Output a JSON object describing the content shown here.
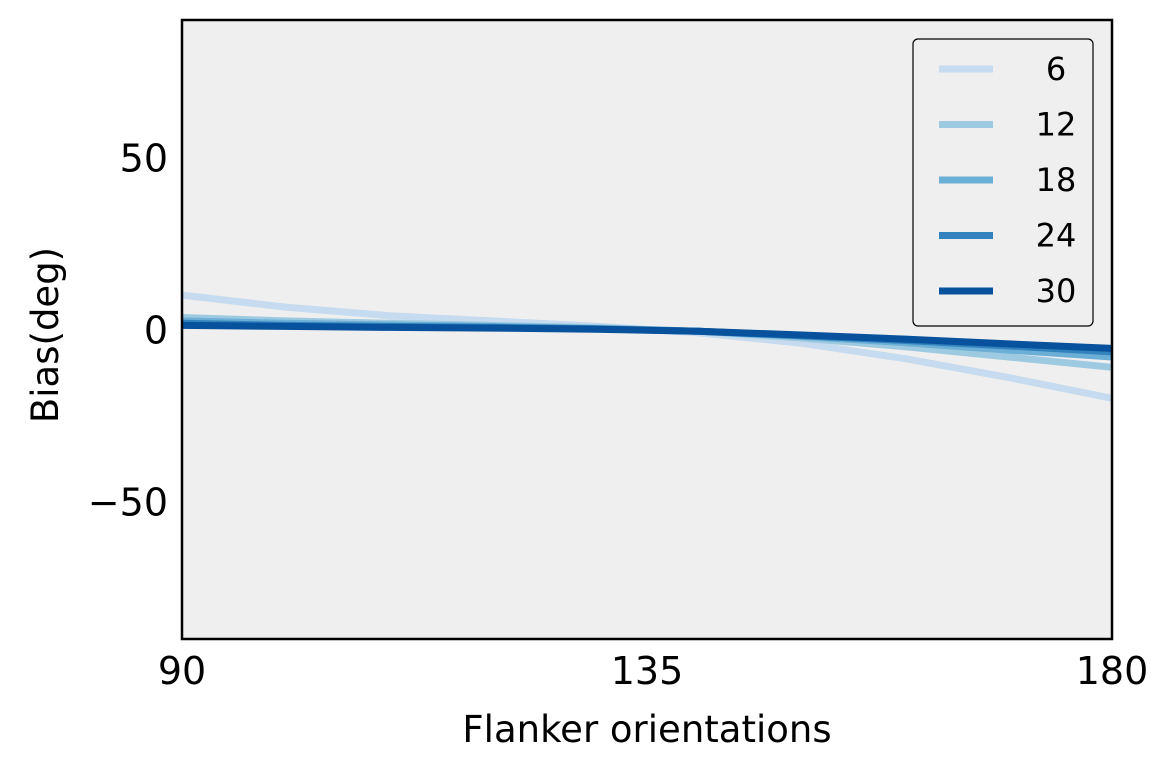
{
  "chart_data": {
    "type": "line",
    "xlabel": "Flanker orientations",
    "ylabel": "Bias(deg)",
    "xlim": [
      90,
      180
    ],
    "ylim": [
      -90,
      90
    ],
    "xticks": [
      90,
      135,
      180
    ],
    "xtick_labels": [
      "90",
      "135",
      "180"
    ],
    "yticks": [
      50,
      0,
      -50
    ],
    "ytick_labels": [
      "50",
      "0",
      "−50"
    ],
    "grid": false,
    "legend_position": "top-right",
    "background_color": "#efefef",
    "x": [
      90,
      100,
      110,
      120,
      130,
      140,
      150,
      160,
      170,
      180
    ],
    "series": [
      {
        "name": "6",
        "color": "#c6dbef",
        "values": [
          10.0,
          6.5,
          4.0,
          2.5,
          1.0,
          -1.0,
          -4.0,
          -8.5,
          -14.0,
          -20.0
        ]
      },
      {
        "name": "12",
        "color": "#9ecae1",
        "values": [
          3.5,
          2.5,
          1.8,
          1.2,
          0.5,
          -0.5,
          -2.5,
          -5.0,
          -8.0,
          -11.0
        ]
      },
      {
        "name": "18",
        "color": "#6baed6",
        "values": [
          2.5,
          1.8,
          1.3,
          0.9,
          0.3,
          -0.5,
          -2.0,
          -3.8,
          -6.0,
          -8.0
        ]
      },
      {
        "name": "24",
        "color": "#3182bd",
        "values": [
          1.8,
          1.2,
          0.9,
          0.6,
          0.2,
          -0.5,
          -1.8,
          -3.2,
          -4.8,
          -6.5
        ]
      },
      {
        "name": "30",
        "color": "#08519c",
        "values": [
          1.2,
          0.9,
          0.6,
          0.4,
          0.1,
          -0.5,
          -1.6,
          -2.8,
          -4.2,
          -5.5
        ]
      }
    ]
  }
}
